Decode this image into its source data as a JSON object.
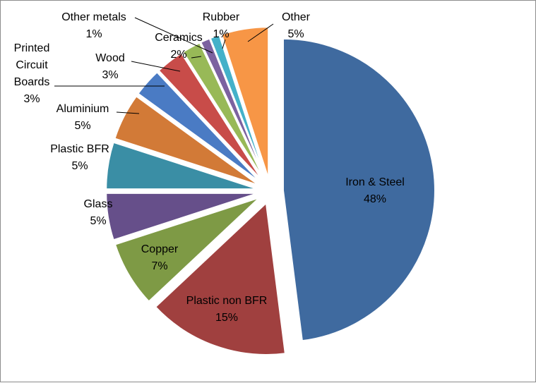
{
  "chart_data": {
    "type": "pie",
    "title": "",
    "legend": "none",
    "slices": [
      {
        "name": "Iron & Steel",
        "value": 48,
        "label": "48%",
        "color": "#3f6a9f"
      },
      {
        "name": "Plastic non BFR",
        "value": 15,
        "label": "15%",
        "color": "#a0403f"
      },
      {
        "name": "Copper",
        "value": 7,
        "label": "7%",
        "color": "#7e9a45"
      },
      {
        "name": "Glass",
        "value": 5,
        "label": "5%",
        "color": "#664f8a"
      },
      {
        "name": "Plastic BFR",
        "value": 5,
        "label": "5%",
        "color": "#3a8ea5"
      },
      {
        "name": "Aluminium",
        "value": 5,
        "label": "5%",
        "color": "#d27a37"
      },
      {
        "name": "Printed Circuit Boards",
        "value": 3,
        "label": "3%",
        "color": "#4a7bc4"
      },
      {
        "name": "Wood",
        "value": 3,
        "label": "3%",
        "color": "#c84c49"
      },
      {
        "name": "Ceramics",
        "value": 2,
        "label": "2%",
        "color": "#98b957"
      },
      {
        "name": "Other metals",
        "value": 1,
        "label": "1%",
        "color": "#7c62a0"
      },
      {
        "name": "Rubber",
        "value": 1,
        "label": "1%",
        "color": "#44b1c9"
      },
      {
        "name": "Other",
        "value": 5,
        "label": "5%",
        "color": "#f79646"
      }
    ]
  }
}
